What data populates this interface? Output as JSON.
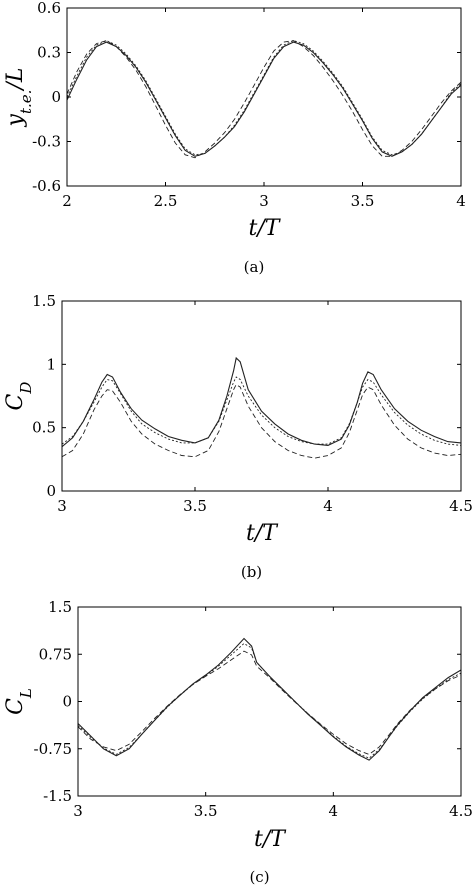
{
  "chart_data": [
    {
      "type": "line",
      "panel_label": "(a)",
      "xlabel": "t/T",
      "ylabel": "y_t.e./L",
      "xlim": [
        2,
        4
      ],
      "ylim": [
        -0.6,
        0.6
      ],
      "xticks": [
        2,
        2.5,
        3,
        3.5,
        4
      ],
      "yticks": [
        -0.6,
        -0.3,
        0,
        0.3,
        0.6
      ],
      "xtick_labels": [
        "2",
        "2.5",
        "3",
        "3.5",
        "4"
      ],
      "ytick_labels": [
        "-0.6",
        "-0.3",
        "0",
        "0.3",
        "0.6"
      ],
      "grid": false,
      "series": [
        {
          "style": "solid",
          "x": [
            2.0,
            2.05,
            2.1,
            2.15,
            2.2,
            2.25,
            2.3,
            2.35,
            2.4,
            2.45,
            2.5,
            2.55,
            2.6,
            2.65,
            2.7,
            2.75,
            2.8,
            2.85,
            2.9,
            2.95,
            3.0,
            3.05,
            3.1,
            3.15,
            3.2,
            3.25,
            3.3,
            3.35,
            3.4,
            3.45,
            3.5,
            3.55,
            3.6,
            3.65,
            3.7,
            3.75,
            3.8,
            3.85,
            3.9,
            3.95,
            4.0
          ],
          "y": [
            -0.02,
            0.12,
            0.25,
            0.34,
            0.37,
            0.34,
            0.28,
            0.2,
            0.1,
            -0.02,
            -0.14,
            -0.26,
            -0.36,
            -0.4,
            -0.38,
            -0.33,
            -0.27,
            -0.2,
            -0.1,
            0.02,
            0.14,
            0.26,
            0.34,
            0.37,
            0.35,
            0.3,
            0.23,
            0.15,
            0.06,
            -0.05,
            -0.16,
            -0.28,
            -0.37,
            -0.4,
            -0.37,
            -0.32,
            -0.25,
            -0.16,
            -0.07,
            0.02,
            0.08
          ]
        },
        {
          "style": "dashed",
          "x": [
            2.0,
            2.05,
            2.1,
            2.15,
            2.2,
            2.25,
            2.3,
            2.35,
            2.4,
            2.45,
            2.5,
            2.55,
            2.6,
            2.65,
            2.7,
            2.75,
            2.8,
            2.85,
            2.9,
            2.95,
            3.0,
            3.05,
            3.1,
            3.15,
            3.2,
            3.25,
            3.3,
            3.35,
            3.4,
            3.45,
            3.5,
            3.55,
            3.6,
            3.65,
            3.7,
            3.75,
            3.8,
            3.85,
            3.9,
            3.95,
            4.0
          ],
          "y": [
            0.02,
            0.17,
            0.29,
            0.36,
            0.38,
            0.34,
            0.27,
            0.18,
            0.07,
            -0.06,
            -0.19,
            -0.31,
            -0.39,
            -0.41,
            -0.37,
            -0.31,
            -0.24,
            -0.15,
            -0.04,
            0.08,
            0.2,
            0.31,
            0.37,
            0.38,
            0.34,
            0.28,
            0.2,
            0.11,
            0.01,
            -0.1,
            -0.22,
            -0.33,
            -0.4,
            -0.4,
            -0.36,
            -0.3,
            -0.22,
            -0.13,
            -0.04,
            0.04,
            0.1
          ]
        },
        {
          "style": "dotted",
          "x": [
            2.0,
            2.05,
            2.1,
            2.15,
            2.2,
            2.25,
            2.3,
            2.35,
            2.4,
            2.45,
            2.5,
            2.55,
            2.6,
            2.65,
            2.7,
            2.75,
            2.8,
            2.85,
            2.9,
            2.95,
            3.0,
            3.05,
            3.1,
            3.15,
            3.2,
            3.25,
            3.3,
            3.35,
            3.4,
            3.45,
            3.5,
            3.55,
            3.6,
            3.65,
            3.7,
            3.75,
            3.8,
            3.85,
            3.9,
            3.95,
            4.0
          ],
          "y": [
            0.0,
            0.14,
            0.27,
            0.35,
            0.38,
            0.35,
            0.29,
            0.21,
            0.11,
            -0.01,
            -0.13,
            -0.25,
            -0.35,
            -0.39,
            -0.38,
            -0.33,
            -0.27,
            -0.19,
            -0.09,
            0.03,
            0.15,
            0.27,
            0.35,
            0.38,
            0.36,
            0.31,
            0.24,
            0.16,
            0.07,
            -0.04,
            -0.15,
            -0.27,
            -0.36,
            -0.39,
            -0.37,
            -0.32,
            -0.25,
            -0.16,
            -0.07,
            0.03,
            0.09
          ]
        }
      ]
    },
    {
      "type": "line",
      "panel_label": "(b)",
      "xlabel": "t/T",
      "ylabel": "C_D",
      "xlim": [
        3,
        4.5
      ],
      "ylim": [
        0,
        1.5
      ],
      "xticks": [
        3,
        3.5,
        4,
        4.5
      ],
      "yticks": [
        0,
        0.5,
        1,
        1.5
      ],
      "xtick_labels": [
        "3",
        "3.5",
        "4",
        "4.5"
      ],
      "ytick_labels": [
        "0",
        "0.5",
        "1",
        "1.5"
      ],
      "grid": false,
      "series": [
        {
          "style": "solid",
          "x": [
            3.0,
            3.04,
            3.08,
            3.12,
            3.15,
            3.17,
            3.19,
            3.22,
            3.26,
            3.3,
            3.35,
            3.4,
            3.45,
            3.5,
            3.55,
            3.59,
            3.62,
            3.645,
            3.655,
            3.67,
            3.7,
            3.75,
            3.8,
            3.85,
            3.9,
            3.95,
            4.0,
            4.05,
            4.08,
            4.11,
            4.13,
            4.15,
            4.17,
            4.2,
            4.25,
            4.3,
            4.35,
            4.4,
            4.45,
            4.5
          ],
          "y": [
            0.35,
            0.42,
            0.55,
            0.72,
            0.86,
            0.92,
            0.9,
            0.78,
            0.65,
            0.56,
            0.49,
            0.43,
            0.4,
            0.38,
            0.42,
            0.56,
            0.75,
            0.95,
            1.05,
            1.02,
            0.8,
            0.63,
            0.53,
            0.45,
            0.4,
            0.37,
            0.36,
            0.41,
            0.52,
            0.7,
            0.85,
            0.94,
            0.92,
            0.8,
            0.65,
            0.55,
            0.48,
            0.43,
            0.39,
            0.38
          ]
        },
        {
          "style": "dotted",
          "x": [
            3.0,
            3.04,
            3.08,
            3.12,
            3.15,
            3.17,
            3.19,
            3.22,
            3.26,
            3.3,
            3.35,
            3.4,
            3.45,
            3.5,
            3.55,
            3.59,
            3.62,
            3.645,
            3.655,
            3.67,
            3.7,
            3.75,
            3.8,
            3.85,
            3.9,
            3.95,
            4.0,
            4.05,
            4.08,
            4.11,
            4.13,
            4.15,
            4.17,
            4.2,
            4.25,
            4.3,
            4.35,
            4.4,
            4.45,
            4.5
          ],
          "y": [
            0.37,
            0.43,
            0.55,
            0.7,
            0.82,
            0.88,
            0.87,
            0.77,
            0.63,
            0.53,
            0.46,
            0.41,
            0.38,
            0.38,
            0.42,
            0.55,
            0.72,
            0.86,
            0.9,
            0.88,
            0.75,
            0.6,
            0.5,
            0.43,
            0.39,
            0.37,
            0.37,
            0.42,
            0.53,
            0.7,
            0.82,
            0.88,
            0.86,
            0.76,
            0.62,
            0.52,
            0.45,
            0.4,
            0.37,
            0.36
          ]
        },
        {
          "style": "dashed",
          "x": [
            3.0,
            3.04,
            3.08,
            3.12,
            3.15,
            3.17,
            3.19,
            3.22,
            3.26,
            3.3,
            3.35,
            3.4,
            3.45,
            3.5,
            3.55,
            3.59,
            3.62,
            3.645,
            3.655,
            3.67,
            3.7,
            3.75,
            3.8,
            3.85,
            3.9,
            3.95,
            4.0,
            4.05,
            4.08,
            4.11,
            4.13,
            4.15,
            4.17,
            4.2,
            4.25,
            4.3,
            4.35,
            4.4,
            4.45,
            4.5
          ],
          "y": [
            0.27,
            0.32,
            0.45,
            0.64,
            0.75,
            0.8,
            0.79,
            0.7,
            0.55,
            0.45,
            0.37,
            0.32,
            0.28,
            0.27,
            0.32,
            0.47,
            0.65,
            0.8,
            0.84,
            0.82,
            0.67,
            0.5,
            0.39,
            0.32,
            0.28,
            0.26,
            0.28,
            0.34,
            0.46,
            0.64,
            0.76,
            0.82,
            0.8,
            0.68,
            0.52,
            0.41,
            0.34,
            0.3,
            0.28,
            0.29
          ]
        }
      ]
    },
    {
      "type": "line",
      "panel_label": "(c)",
      "xlabel": "t/T",
      "ylabel": "C_L",
      "xlim": [
        3,
        4.5
      ],
      "ylim": [
        -1.5,
        1.5
      ],
      "xticks": [
        3,
        3.5,
        4,
        4.5
      ],
      "yticks": [
        -1.5,
        -0.75,
        0,
        0.75,
        1.5
      ],
      "xtick_labels": [
        "3",
        "3.5",
        "4",
        "4.5"
      ],
      "ytick_labels": [
        "-1.5",
        "-0.75",
        "0",
        "0.75",
        "1.5"
      ],
      "grid": false,
      "series": [
        {
          "style": "solid",
          "x": [
            3.0,
            3.05,
            3.1,
            3.15,
            3.2,
            3.25,
            3.3,
            3.35,
            3.4,
            3.45,
            3.5,
            3.55,
            3.6,
            3.65,
            3.68,
            3.7,
            3.75,
            3.8,
            3.85,
            3.9,
            3.95,
            4.0,
            4.05,
            4.1,
            4.14,
            4.18,
            4.22,
            4.25,
            4.3,
            4.35,
            4.4,
            4.45,
            4.5
          ],
          "y": [
            -0.35,
            -0.55,
            -0.75,
            -0.86,
            -0.75,
            -0.52,
            -0.3,
            -0.08,
            0.1,
            0.28,
            0.42,
            0.58,
            0.78,
            1.0,
            0.88,
            0.62,
            0.4,
            0.2,
            0.0,
            -0.2,
            -0.38,
            -0.56,
            -0.72,
            -0.85,
            -0.93,
            -0.78,
            -0.55,
            -0.38,
            -0.15,
            0.06,
            0.22,
            0.38,
            0.5
          ]
        },
        {
          "style": "dotted",
          "x": [
            3.0,
            3.05,
            3.1,
            3.15,
            3.2,
            3.25,
            3.3,
            3.35,
            3.4,
            3.45,
            3.5,
            3.55,
            3.6,
            3.65,
            3.68,
            3.7,
            3.75,
            3.8,
            3.85,
            3.9,
            3.95,
            4.0,
            4.05,
            4.1,
            4.14,
            4.18,
            4.22,
            4.25,
            4.3,
            4.35,
            4.4,
            4.45,
            4.5
          ],
          "y": [
            -0.38,
            -0.57,
            -0.74,
            -0.84,
            -0.73,
            -0.52,
            -0.3,
            -0.09,
            0.1,
            0.27,
            0.41,
            0.56,
            0.74,
            0.92,
            0.85,
            0.62,
            0.4,
            0.19,
            0.0,
            -0.19,
            -0.37,
            -0.55,
            -0.71,
            -0.83,
            -0.9,
            -0.76,
            -0.55,
            -0.39,
            -0.16,
            0.04,
            0.2,
            0.35,
            0.45
          ]
        },
        {
          "style": "dashed",
          "x": [
            3.0,
            3.05,
            3.1,
            3.15,
            3.2,
            3.25,
            3.3,
            3.35,
            3.4,
            3.45,
            3.5,
            3.55,
            3.6,
            3.65,
            3.68,
            3.7,
            3.75,
            3.8,
            3.85,
            3.9,
            3.95,
            4.0,
            4.05,
            4.1,
            4.14,
            4.18,
            4.22,
            4.25,
            4.3,
            4.35,
            4.4,
            4.45,
            4.5
          ],
          "y": [
            -0.4,
            -0.6,
            -0.72,
            -0.78,
            -0.68,
            -0.48,
            -0.27,
            -0.07,
            0.11,
            0.27,
            0.4,
            0.52,
            0.66,
            0.8,
            0.74,
            0.56,
            0.38,
            0.18,
            -0.01,
            -0.19,
            -0.36,
            -0.52,
            -0.67,
            -0.78,
            -0.84,
            -0.72,
            -0.52,
            -0.36,
            -0.14,
            0.05,
            0.2,
            0.33,
            0.42
          ]
        }
      ]
    }
  ]
}
